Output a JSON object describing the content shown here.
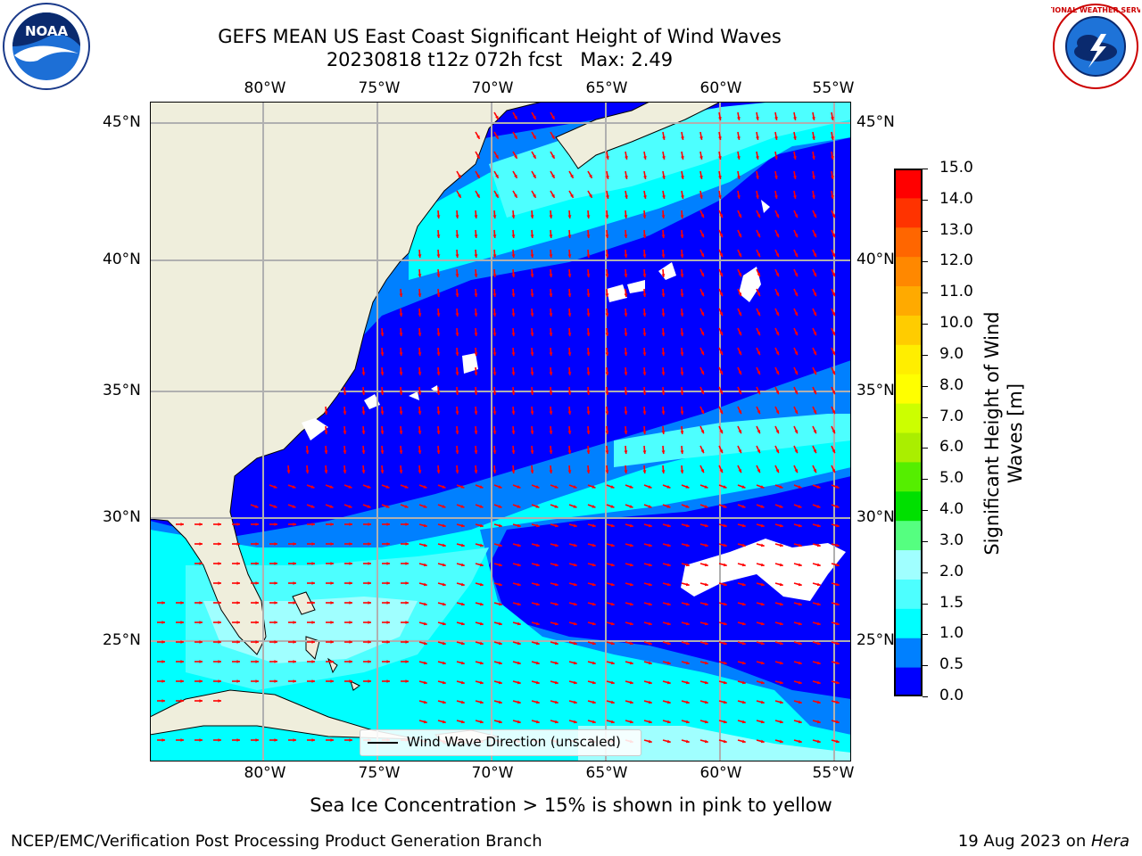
{
  "header": {
    "title_line1": "GEFS MEAN US East Coast Significant Height of Wind Waves",
    "title_line2": "20230818 t12z 072h fcst   Max: 2.49"
  },
  "logos": {
    "left": "NOAA",
    "right": "NATIONAL WEATHER SERVICE"
  },
  "map": {
    "lon_labels": [
      "80°W",
      "75°W",
      "70°W",
      "65°W",
      "60°W",
      "55°W"
    ],
    "lat_labels": [
      "45°N",
      "40°N",
      "35°N",
      "30°N",
      "25°N"
    ],
    "legend_label": "Wind Wave Direction (unscaled)",
    "ocean_color": "#0000ff",
    "land_color": "#efeedc",
    "arrow_color": "#ff0000"
  },
  "colorbar": {
    "title": "Significant Height of Wind\nWaves [m]",
    "ticks": [
      "15.0",
      "14.0",
      "13.0",
      "12.0",
      "11.0",
      "10.0",
      "9.0",
      "8.0",
      "7.0",
      "6.0",
      "5.0",
      "4.0",
      "3.0",
      "2.0",
      "1.5",
      "1.0",
      "0.5",
      "0.0"
    ],
    "colors": [
      "#0000ff",
      "#0080ff",
      "#00ffff",
      "#4dffff",
      "#a0ffff",
      "#55ff80",
      "#00e000",
      "#55ee00",
      "#aaee00",
      "#ccff00",
      "#ffff00",
      "#ffee00",
      "#ffcc00",
      "#ffaa00",
      "#ff8800",
      "#ff6600",
      "#ff3300",
      "#ff0000"
    ]
  },
  "note": "Sea Ice Concentration > 15% is shown in pink to yellow",
  "footer": {
    "left": "NCEP/EMC/Verification Post Processing Product Generation Branch",
    "date": "19 Aug 2023 on ",
    "machine": "Hera"
  }
}
